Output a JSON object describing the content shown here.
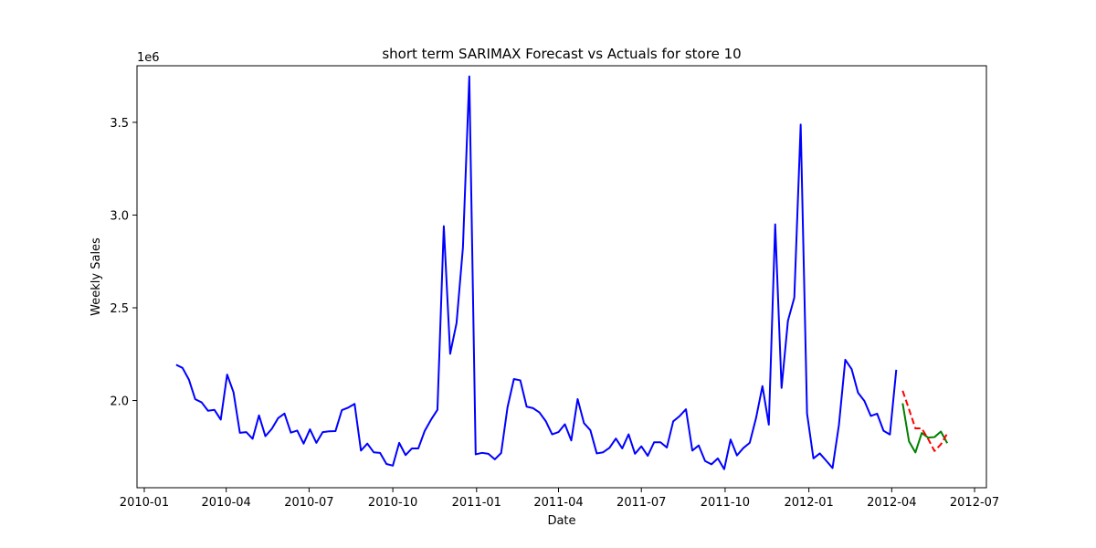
{
  "chart_data": {
    "type": "line",
    "title": "short term SARIMAX Forecast vs Actuals for store 10",
    "xlabel": "Date",
    "ylabel": "Weekly Sales",
    "y_offset_label": "1e6",
    "y_scale": 1000000,
    "xlim": [
      "2009-12-24",
      "2012-07-14"
    ],
    "ylim": [
      1530000,
      3805000
    ],
    "x_ticks": [
      {
        "date": "2010-01-01",
        "label": "2010-01"
      },
      {
        "date": "2010-04-01",
        "label": "2010-04"
      },
      {
        "date": "2010-07-01",
        "label": "2010-07"
      },
      {
        "date": "2010-10-01",
        "label": "2010-10"
      },
      {
        "date": "2011-01-01",
        "label": "2011-01"
      },
      {
        "date": "2011-04-01",
        "label": "2011-04"
      },
      {
        "date": "2011-07-01",
        "label": "2011-07"
      },
      {
        "date": "2011-10-01",
        "label": "2011-10"
      },
      {
        "date": "2012-01-01",
        "label": "2012-01"
      },
      {
        "date": "2012-04-01",
        "label": "2012-04"
      },
      {
        "date": "2012-07-01",
        "label": "2012-07"
      }
    ],
    "y_ticks": [
      {
        "value": 2000000,
        "label": "2.0"
      },
      {
        "value": 2500000,
        "label": "2.5"
      },
      {
        "value": 3000000,
        "label": "3.0"
      },
      {
        "value": 3500000,
        "label": "3.5"
      }
    ],
    "grid": false,
    "legend": "none",
    "series": [
      {
        "color": "#0000ff",
        "style": "solid",
        "x": [
          "2010-02-05",
          "2010-02-12",
          "2010-02-19",
          "2010-02-26",
          "2010-03-05",
          "2010-03-12",
          "2010-03-19",
          "2010-03-26",
          "2010-04-02",
          "2010-04-09",
          "2010-04-16",
          "2010-04-23",
          "2010-04-30",
          "2010-05-07",
          "2010-05-14",
          "2010-05-21",
          "2010-05-28",
          "2010-06-04",
          "2010-06-11",
          "2010-06-18",
          "2010-06-25",
          "2010-07-02",
          "2010-07-09",
          "2010-07-16",
          "2010-07-23",
          "2010-07-30",
          "2010-08-06",
          "2010-08-13",
          "2010-08-20",
          "2010-08-27",
          "2010-09-03",
          "2010-09-10",
          "2010-09-17",
          "2010-09-24",
          "2010-10-01",
          "2010-10-08",
          "2010-10-15",
          "2010-10-22",
          "2010-10-29",
          "2010-11-05",
          "2010-11-12",
          "2010-11-19",
          "2010-11-26",
          "2010-12-03",
          "2010-12-10",
          "2010-12-17",
          "2010-12-24",
          "2010-12-31",
          "2011-01-07",
          "2011-01-14",
          "2011-01-21",
          "2011-01-28",
          "2011-02-04",
          "2011-02-11",
          "2011-02-18",
          "2011-02-25",
          "2011-03-04",
          "2011-03-11",
          "2011-03-18",
          "2011-03-25",
          "2011-04-01",
          "2011-04-08",
          "2011-04-15",
          "2011-04-22",
          "2011-04-29",
          "2011-05-06",
          "2011-05-13",
          "2011-05-20",
          "2011-05-27",
          "2011-06-03",
          "2011-06-10",
          "2011-06-17",
          "2011-06-24",
          "2011-07-01",
          "2011-07-08",
          "2011-07-15",
          "2011-07-22",
          "2011-07-29",
          "2011-08-05",
          "2011-08-12",
          "2011-08-19",
          "2011-08-26",
          "2011-09-02",
          "2011-09-09",
          "2011-09-16",
          "2011-09-23",
          "2011-09-30",
          "2011-10-07",
          "2011-10-14",
          "2011-10-21",
          "2011-10-28",
          "2011-11-04",
          "2011-11-11",
          "2011-11-18",
          "2011-11-25",
          "2011-12-02",
          "2011-12-09",
          "2011-12-16",
          "2011-12-23",
          "2011-12-30",
          "2012-01-06",
          "2012-01-13",
          "2012-01-20",
          "2012-01-27",
          "2012-02-03",
          "2012-02-10",
          "2012-02-17",
          "2012-02-24",
          "2012-03-02",
          "2012-03-09",
          "2012-03-16",
          "2012-03-23",
          "2012-03-30",
          "2012-04-06"
        ],
        "values": [
          2193000,
          2176000,
          2113000,
          2007000,
          1990000,
          1945000,
          1950000,
          1897000,
          2140000,
          2045000,
          1826000,
          1830000,
          1794000,
          1920000,
          1808000,
          1847000,
          1905000,
          1930000,
          1827000,
          1838000,
          1768000,
          1845000,
          1772000,
          1830000,
          1834000,
          1835000,
          1948000,
          1962000,
          1982000,
          1730000,
          1768000,
          1721000,
          1718000,
          1658000,
          1649000,
          1772000,
          1706000,
          1742000,
          1742000,
          1836000,
          1897000,
          1950000,
          2940000,
          2252000,
          2418000,
          2824000,
          3748000,
          1710000,
          1718000,
          1713000,
          1683000,
          1717000,
          1964000,
          2116000,
          2109000,
          1967000,
          1959000,
          1936000,
          1889000,
          1818000,
          1830000,
          1872000,
          1785000,
          2008000,
          1878000,
          1840000,
          1715000,
          1721000,
          1745000,
          1795000,
          1742000,
          1818000,
          1713000,
          1753000,
          1702000,
          1775000,
          1775000,
          1747000,
          1888000,
          1916000,
          1953000,
          1730000,
          1758000,
          1674000,
          1656000,
          1688000,
          1630000,
          1790000,
          1704000,
          1744000,
          1772000,
          1906000,
          2078000,
          1870000,
          2950000,
          2068000,
          2430000,
          2555000,
          3488000,
          1930000,
          1688000,
          1715000,
          1676000,
          1636000,
          1868000,
          2220000,
          2169000,
          2042000,
          1998000,
          1917000,
          1929000,
          1837000,
          1817000,
          2166000
        ]
      },
      {
        "color": "#008000",
        "style": "solid",
        "x": [
          "2012-04-13",
          "2012-04-20",
          "2012-04-27",
          "2012-05-04",
          "2012-05-11",
          "2012-05-18",
          "2012-05-25",
          "2012-06-01"
        ],
        "values": [
          1985000,
          1780000,
          1720000,
          1825000,
          1800000,
          1803000,
          1833000,
          1770000
        ]
      },
      {
        "color": "#ff0000",
        "style": "dashed",
        "x": [
          "2012-04-13",
          "2012-04-20",
          "2012-04-27",
          "2012-05-04",
          "2012-05-11",
          "2012-05-18",
          "2012-05-25",
          "2012-06-01"
        ],
        "values": [
          2053000,
          1953000,
          1850000,
          1850000,
          1793000,
          1728000,
          1764000,
          1822000
        ]
      }
    ]
  }
}
